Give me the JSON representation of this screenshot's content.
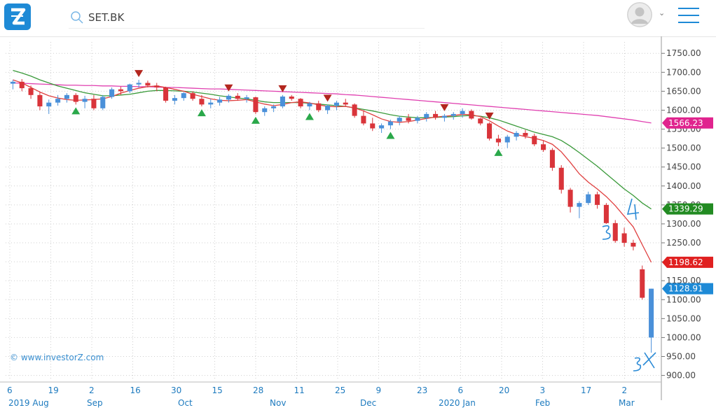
{
  "header": {
    "logo_letter": "Z",
    "search_value": "SET.BK",
    "brand_color": "#1e8ad6"
  },
  "watermark": "© www.investorZ.com",
  "chart_data": {
    "type": "candlestick",
    "symbol": "SET.BK",
    "y_ticks": [
      1750,
      1700,
      1650,
      1600,
      1550,
      1500,
      1450,
      1400,
      1350,
      1300,
      1250,
      1200,
      1150,
      1100,
      1050,
      1000,
      950,
      900
    ],
    "ylim": [
      890,
      1780
    ],
    "x_tick_labels": [
      "6",
      "19",
      "2",
      "16",
      "30",
      "15",
      "28",
      "11",
      "25",
      "9",
      "23",
      "6",
      "20",
      "3",
      "17",
      "2"
    ],
    "month_labels": [
      "2019 Aug",
      "Sep",
      "Oct",
      "Nov",
      "Dec",
      "2020 Jan",
      "Feb",
      "Mar"
    ],
    "price_tags": [
      {
        "label": "1566.23",
        "value": 1566.23,
        "color": "#e0248e",
        "series": "ma200"
      },
      {
        "label": "1339.29",
        "value": 1339.29,
        "color": "#228b22",
        "series": "ma20"
      },
      {
        "label": "1198.62",
        "value": 1198.62,
        "color": "#e02020",
        "series": "ma10"
      },
      {
        "label": "1128.91",
        "value": 1128.91,
        "color": "#1e8ad6",
        "series": "close"
      }
    ],
    "colors": {
      "up": "#4a90d9",
      "down": "#d9343a",
      "ma10": "#e04040",
      "ma20": "#3a9a3a",
      "ma200": "#e040b0",
      "grid": "#cfcfcf"
    },
    "candles": [
      [
        1670,
        1680,
        1655,
        1675
      ],
      [
        1675,
        1682,
        1650,
        1658
      ],
      [
        1658,
        1665,
        1630,
        1640
      ],
      [
        1640,
        1648,
        1600,
        1610
      ],
      [
        1610,
        1628,
        1590,
        1620
      ],
      [
        1620,
        1640,
        1612,
        1630
      ],
      [
        1630,
        1645,
        1620,
        1640
      ],
      [
        1640,
        1645,
        1615,
        1622
      ],
      [
        1622,
        1638,
        1605,
        1630
      ],
      [
        1630,
        1640,
        1600,
        1605
      ],
      [
        1605,
        1640,
        1600,
        1635
      ],
      [
        1635,
        1660,
        1630,
        1655
      ],
      [
        1655,
        1662,
        1640,
        1650
      ],
      [
        1650,
        1670,
        1645,
        1668
      ],
      [
        1668,
        1680,
        1660,
        1672
      ],
      [
        1672,
        1678,
        1660,
        1665
      ],
      [
        1665,
        1672,
        1650,
        1660
      ],
      [
        1660,
        1662,
        1620,
        1625
      ],
      [
        1625,
        1640,
        1615,
        1632
      ],
      [
        1632,
        1648,
        1625,
        1645
      ],
      [
        1645,
        1650,
        1625,
        1630
      ],
      [
        1630,
        1640,
        1610,
        1615
      ],
      [
        1615,
        1630,
        1605,
        1620
      ],
      [
        1620,
        1635,
        1612,
        1628
      ],
      [
        1628,
        1642,
        1620,
        1638
      ],
      [
        1638,
        1645,
        1625,
        1630
      ],
      [
        1630,
        1640,
        1620,
        1634
      ],
      [
        1634,
        1636,
        1590,
        1595
      ],
      [
        1595,
        1610,
        1585,
        1605
      ],
      [
        1605,
        1615,
        1595,
        1610
      ],
      [
        1610,
        1640,
        1605,
        1636
      ],
      [
        1636,
        1640,
        1625,
        1630
      ],
      [
        1630,
        1632,
        1605,
        1610
      ],
      [
        1610,
        1622,
        1600,
        1618
      ],
      [
        1618,
        1625,
        1595,
        1600
      ],
      [
        1600,
        1615,
        1590,
        1612
      ],
      [
        1612,
        1625,
        1600,
        1620
      ],
      [
        1620,
        1630,
        1610,
        1615
      ],
      [
        1615,
        1618,
        1580,
        1585
      ],
      [
        1585,
        1600,
        1560,
        1565
      ],
      [
        1565,
        1580,
        1545,
        1552
      ],
      [
        1552,
        1565,
        1540,
        1560
      ],
      [
        1560,
        1575,
        1550,
        1570
      ],
      [
        1570,
        1585,
        1560,
        1580
      ],
      [
        1580,
        1590,
        1565,
        1572
      ],
      [
        1572,
        1585,
        1565,
        1580
      ],
      [
        1580,
        1595,
        1570,
        1590
      ],
      [
        1590,
        1598,
        1575,
        1580
      ],
      [
        1580,
        1590,
        1570,
        1585
      ],
      [
        1585,
        1595,
        1575,
        1590
      ],
      [
        1590,
        1605,
        1580,
        1598
      ],
      [
        1598,
        1602,
        1575,
        1578
      ],
      [
        1578,
        1580,
        1560,
        1565
      ],
      [
        1565,
        1568,
        1520,
        1525
      ],
      [
        1525,
        1535,
        1505,
        1515
      ],
      [
        1515,
        1535,
        1500,
        1530
      ],
      [
        1530,
        1545,
        1520,
        1540
      ],
      [
        1540,
        1548,
        1525,
        1532
      ],
      [
        1532,
        1538,
        1505,
        1510
      ],
      [
        1510,
        1520,
        1490,
        1495
      ],
      [
        1495,
        1500,
        1440,
        1448
      ],
      [
        1448,
        1455,
        1380,
        1390
      ],
      [
        1390,
        1395,
        1330,
        1345
      ],
      [
        1345,
        1360,
        1315,
        1355
      ],
      [
        1355,
        1385,
        1350,
        1378
      ],
      [
        1378,
        1385,
        1340,
        1350
      ],
      [
        1350,
        1355,
        1300,
        1302
      ],
      [
        1302,
        1310,
        1250,
        1255
      ],
      [
        1275,
        1290,
        1240,
        1250
      ],
      [
        1250,
        1258,
        1230,
        1240
      ],
      [
        1180,
        1190,
        1100,
        1105
      ],
      [
        1000,
        1128.91,
        960,
        1128.91
      ]
    ],
    "ma10": [
      1680,
      1672,
      1660,
      1648,
      1638,
      1632,
      1628,
      1626,
      1627,
      1628,
      1630,
      1636,
      1645,
      1652,
      1658,
      1662,
      1664,
      1660,
      1655,
      1650,
      1642,
      1636,
      1630,
      1626,
      1625,
      1626,
      1628,
      1622,
      1616,
      1612,
      1615,
      1620,
      1622,
      1619,
      1614,
      1610,
      1609,
      1610,
      1606,
      1598,
      1588,
      1577,
      1570,
      1568,
      1570,
      1574,
      1578,
      1582,
      1584,
      1586,
      1589,
      1588,
      1583,
      1572,
      1558,
      1545,
      1536,
      1530,
      1526,
      1520,
      1510,
      1490,
      1462,
      1432,
      1410,
      1392,
      1372,
      1348,
      1320,
      1292,
      1245,
      1198.62
    ],
    "ma20": [
      1705,
      1698,
      1690,
      1680,
      1672,
      1664,
      1658,
      1652,
      1646,
      1642,
      1638,
      1638,
      1640,
      1642,
      1646,
      1650,
      1652,
      1652,
      1651,
      1650,
      1648,
      1645,
      1642,
      1638,
      1635,
      1632,
      1630,
      1626,
      1622,
      1620,
      1620,
      1620,
      1620,
      1618,
      1616,
      1614,
      1612,
      1610,
      1606,
      1602,
      1598,
      1593,
      1588,
      1584,
      1582,
      1580,
      1580,
      1581,
      1582,
      1583,
      1585,
      1586,
      1584,
      1580,
      1574,
      1566,
      1558,
      1550,
      1542,
      1536,
      1530,
      1520,
      1505,
      1488,
      1470,
      1452,
      1432,
      1412,
      1392,
      1375,
      1355,
      1339.29
    ],
    "ma200": [
      1672,
      1671,
      1670,
      1669,
      1668,
      1667,
      1666,
      1666,
      1665,
      1665,
      1664,
      1664,
      1663,
      1663,
      1662,
      1662,
      1661,
      1660,
      1660,
      1659,
      1658,
      1657,
      1656,
      1656,
      1655,
      1654,
      1653,
      1652,
      1651,
      1650,
      1649,
      1648,
      1647,
      1646,
      1645,
      1644,
      1643,
      1641,
      1640,
      1638,
      1636,
      1634,
      1632,
      1630,
      1628,
      1626,
      1624,
      1622,
      1620,
      1618,
      1616,
      1614,
      1612,
      1610,
      1608,
      1606,
      1604,
      1602,
      1600,
      1598,
      1596,
      1594,
      1592,
      1590,
      1588,
      1586,
      1583,
      1580,
      1577,
      1574,
      1570,
      1566.23
    ],
    "buy_signals": [
      7,
      21,
      27,
      33,
      42,
      54
    ],
    "sell_signals": [
      14,
      24,
      30,
      35,
      48,
      53
    ]
  }
}
